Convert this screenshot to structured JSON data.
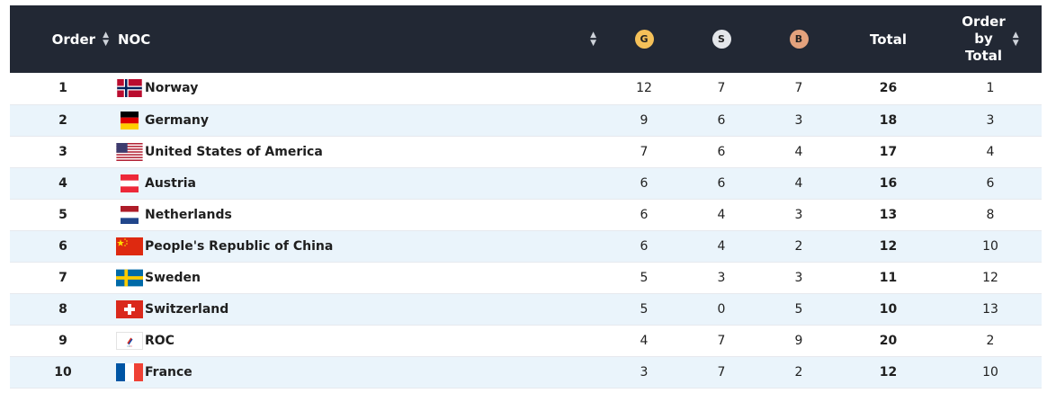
{
  "header": {
    "order_label": "Order",
    "noc_label": "NOC",
    "gold_label": "G",
    "silver_label": "S",
    "bronze_label": "B",
    "total_label": "Total",
    "order_by_total_line1": "Order",
    "order_by_total_line2": "by",
    "order_by_total_line3": "Total",
    "sort_icon": "sort-updown-icon"
  },
  "colors": {
    "header_bg": "#222834",
    "row_alt_bg": "#eaf4fb",
    "gold": "#f5c159",
    "silver": "#e4e6ea",
    "bronze": "#e3a27d"
  },
  "rows": [
    {
      "order": "1",
      "noc": "Norway",
      "flag": "norway-flag-icon",
      "gold": "12",
      "silver": "7",
      "bronze": "7",
      "total": "26",
      "order_by_total": "1"
    },
    {
      "order": "2",
      "noc": "Germany",
      "flag": "germany-flag-icon",
      "gold": "9",
      "silver": "6",
      "bronze": "3",
      "total": "18",
      "order_by_total": "3"
    },
    {
      "order": "3",
      "noc": "United States of America",
      "flag": "usa-flag-icon",
      "gold": "7",
      "silver": "6",
      "bronze": "4",
      "total": "17",
      "order_by_total": "4"
    },
    {
      "order": "4",
      "noc": "Austria",
      "flag": "austria-flag-icon",
      "gold": "6",
      "silver": "6",
      "bronze": "4",
      "total": "16",
      "order_by_total": "6"
    },
    {
      "order": "5",
      "noc": "Netherlands",
      "flag": "netherlands-flag-icon",
      "gold": "6",
      "silver": "4",
      "bronze": "3",
      "total": "13",
      "order_by_total": "8"
    },
    {
      "order": "6",
      "noc": "People's Republic of China",
      "flag": "china-flag-icon",
      "gold": "6",
      "silver": "4",
      "bronze": "2",
      "total": "12",
      "order_by_total": "10"
    },
    {
      "order": "7",
      "noc": "Sweden",
      "flag": "sweden-flag-icon",
      "gold": "5",
      "silver": "3",
      "bronze": "3",
      "total": "11",
      "order_by_total": "12"
    },
    {
      "order": "8",
      "noc": "Switzerland",
      "flag": "switzerland-flag-icon",
      "gold": "5",
      "silver": "0",
      "bronze": "5",
      "total": "10",
      "order_by_total": "13"
    },
    {
      "order": "9",
      "noc": "ROC",
      "flag": "roc-flag-icon",
      "gold": "4",
      "silver": "7",
      "bronze": "9",
      "total": "20",
      "order_by_total": "2"
    },
    {
      "order": "10",
      "noc": "France",
      "flag": "france-flag-icon",
      "gold": "3",
      "silver": "7",
      "bronze": "2",
      "total": "12",
      "order_by_total": "10"
    }
  ]
}
